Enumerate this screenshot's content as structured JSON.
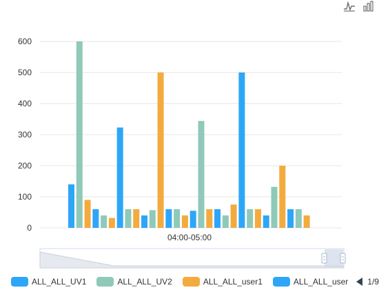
{
  "chart_data": {
    "type": "bar",
    "categories": [
      "04:00-05:00"
    ],
    "ylim": [
      0,
      600
    ],
    "yticks": [
      0,
      100,
      200,
      300,
      400,
      500,
      600
    ],
    "grid": true,
    "legend_position": "bottom",
    "series": [
      {
        "name": "ALL_ALL_UV1",
        "color": "#2ea6f8"
      },
      {
        "name": "ALL_ALL_UV2",
        "color": "#8fc9b9"
      },
      {
        "name": "ALL_ALL_user1",
        "color": "#f3ab3f"
      },
      {
        "name": "ALL_ALL_user",
        "color": "#2ea6f8"
      }
    ],
    "bars": [
      {
        "value": 140,
        "color": "#2ea6f8"
      },
      {
        "value": 600,
        "color": "#8fc9b9"
      },
      {
        "value": 90,
        "color": "#f3ab3f"
      },
      {
        "value": 60,
        "color": "#2ea6f8"
      },
      {
        "value": 40,
        "color": "#8fc9b9"
      },
      {
        "value": 32,
        "color": "#f3ab3f"
      },
      {
        "value": 323,
        "color": "#2ea6f8"
      },
      {
        "value": 60,
        "color": "#8fc9b9"
      },
      {
        "value": 60,
        "color": "#f3ab3f"
      },
      {
        "value": 40,
        "color": "#2ea6f8"
      },
      {
        "value": 57,
        "color": "#8fc9b9"
      },
      {
        "value": 500,
        "color": "#f3ab3f"
      },
      {
        "value": 60,
        "color": "#2ea6f8"
      },
      {
        "value": 60,
        "color": "#8fc9b9"
      },
      {
        "value": 40,
        "color": "#f3ab3f"
      },
      {
        "value": 55,
        "color": "#2ea6f8"
      },
      {
        "value": 344,
        "color": "#8fc9b9"
      },
      {
        "value": 60,
        "color": "#f3ab3f"
      },
      {
        "value": 60,
        "color": "#2ea6f8"
      },
      {
        "value": 40,
        "color": "#8fc9b9"
      },
      {
        "value": 75,
        "color": "#f3ab3f"
      },
      {
        "value": 500,
        "color": "#2ea6f8"
      },
      {
        "value": 60,
        "color": "#8fc9b9"
      },
      {
        "value": 60,
        "color": "#f3ab3f"
      },
      {
        "value": 40,
        "color": "#2ea6f8"
      },
      {
        "value": 132,
        "color": "#8fc9b9"
      },
      {
        "value": 200,
        "color": "#f3ab3f"
      },
      {
        "value": 60,
        "color": "#2ea6f8"
      },
      {
        "value": 60,
        "color": "#8fc9b9"
      },
      {
        "value": 40,
        "color": "#f3ab3f"
      }
    ]
  },
  "legend": {
    "items": [
      {
        "label": "ALL_ALL_UV1",
        "color": "#2ea6f8"
      },
      {
        "label": "ALL_ALL_UV2",
        "color": "#8fc9b9"
      },
      {
        "label": "ALL_ALL_user1",
        "color": "#f3ab3f"
      },
      {
        "label": "ALL_ALL_user",
        "color": "#2ea6f8"
      }
    ],
    "page_text": "1/9"
  },
  "toolbox": {
    "icons": [
      "line-chart-icon",
      "bar-chart-icon"
    ]
  }
}
